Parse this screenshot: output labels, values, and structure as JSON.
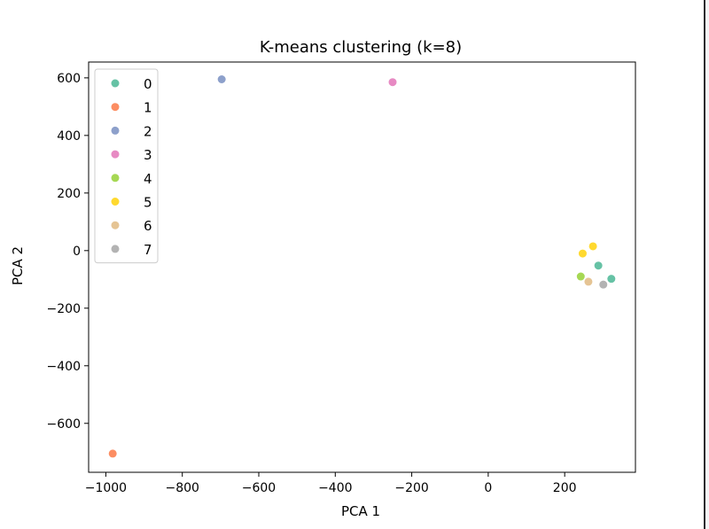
{
  "chart_data": {
    "type": "scatter",
    "title": "K-means clustering (k=8)",
    "xlabel": "PCA 1",
    "ylabel": "PCA 2",
    "xlim": [
      -1045,
      385
    ],
    "ylim": [
      -770,
      655
    ],
    "xticks": [
      -1000,
      -800,
      -600,
      -400,
      -200,
      0,
      200
    ],
    "xtick_labels": [
      "−1000",
      "−800",
      "−600",
      "−400",
      "−200",
      "0",
      "200"
    ],
    "yticks": [
      -600,
      -400,
      -200,
      0,
      200,
      400,
      600
    ],
    "ytick_labels": [
      "−600",
      "−400",
      "−200",
      "0",
      "200",
      "400",
      "600"
    ],
    "grid": false,
    "legend_position": "top-left",
    "series": [
      {
        "name": "0",
        "color": "#66c2a5",
        "points": [
          [
            288,
            -52
          ],
          [
            322,
            -98
          ]
        ]
      },
      {
        "name": "1",
        "color": "#fc8d62",
        "points": [
          [
            -982,
            -705
          ]
        ]
      },
      {
        "name": "2",
        "color": "#8da0cb",
        "points": [
          [
            -697,
            595
          ]
        ]
      },
      {
        "name": "3",
        "color": "#e78ac3",
        "points": [
          [
            -250,
            585
          ]
        ]
      },
      {
        "name": "4",
        "color": "#a6d854",
        "points": [
          [
            242,
            -90
          ]
        ]
      },
      {
        "name": "5",
        "color": "#ffd92f",
        "points": [
          [
            247,
            -10
          ],
          [
            274,
            15
          ]
        ]
      },
      {
        "name": "6",
        "color": "#e5c494",
        "points": [
          [
            262,
            -108
          ]
        ]
      },
      {
        "name": "7",
        "color": "#b3b3b3",
        "points": [
          [
            301,
            -118
          ]
        ]
      }
    ]
  }
}
